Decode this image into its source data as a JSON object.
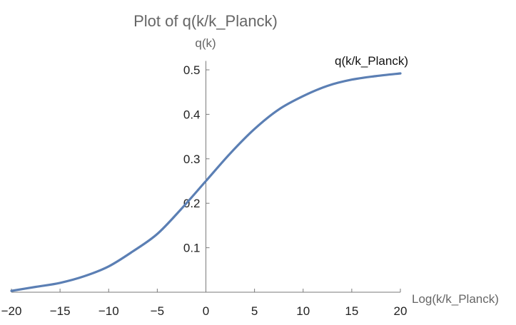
{
  "chart_data": {
    "type": "line",
    "title": "Plot of q(k/k_Planck)",
    "xlabel": "Log(k/k_Planck)",
    "ylabel": "q(k)",
    "xlim": [
      -20,
      20
    ],
    "ylim": [
      0,
      0.52
    ],
    "x_ticks": [
      -20,
      -15,
      -10,
      -5,
      0,
      5,
      10,
      15,
      20
    ],
    "x_tick_labels": [
      "−20",
      "−15",
      "−10",
      "−5",
      "0",
      "5",
      "10",
      "15",
      "20"
    ],
    "y_ticks": [
      0.1,
      0.2,
      0.3,
      0.4,
      0.5
    ],
    "y_tick_labels": [
      "0.1",
      "0.2",
      "0.3",
      "0.4",
      "0.5"
    ],
    "grid": false,
    "series": [
      {
        "name": "q(k/k_Planck)",
        "color": "#5b7fb4",
        "x": [
          -20,
          -17.5,
          -15,
          -12.5,
          -10,
          -7.5,
          -5,
          -2.5,
          0,
          2.5,
          5,
          7.5,
          10,
          12.5,
          15,
          17.5,
          20
        ],
        "y": [
          0.003,
          0.012,
          0.021,
          0.036,
          0.058,
          0.092,
          0.131,
          0.188,
          0.25,
          0.312,
          0.367,
          0.411,
          0.441,
          0.464,
          0.478,
          0.486,
          0.492
        ]
      }
    ]
  }
}
